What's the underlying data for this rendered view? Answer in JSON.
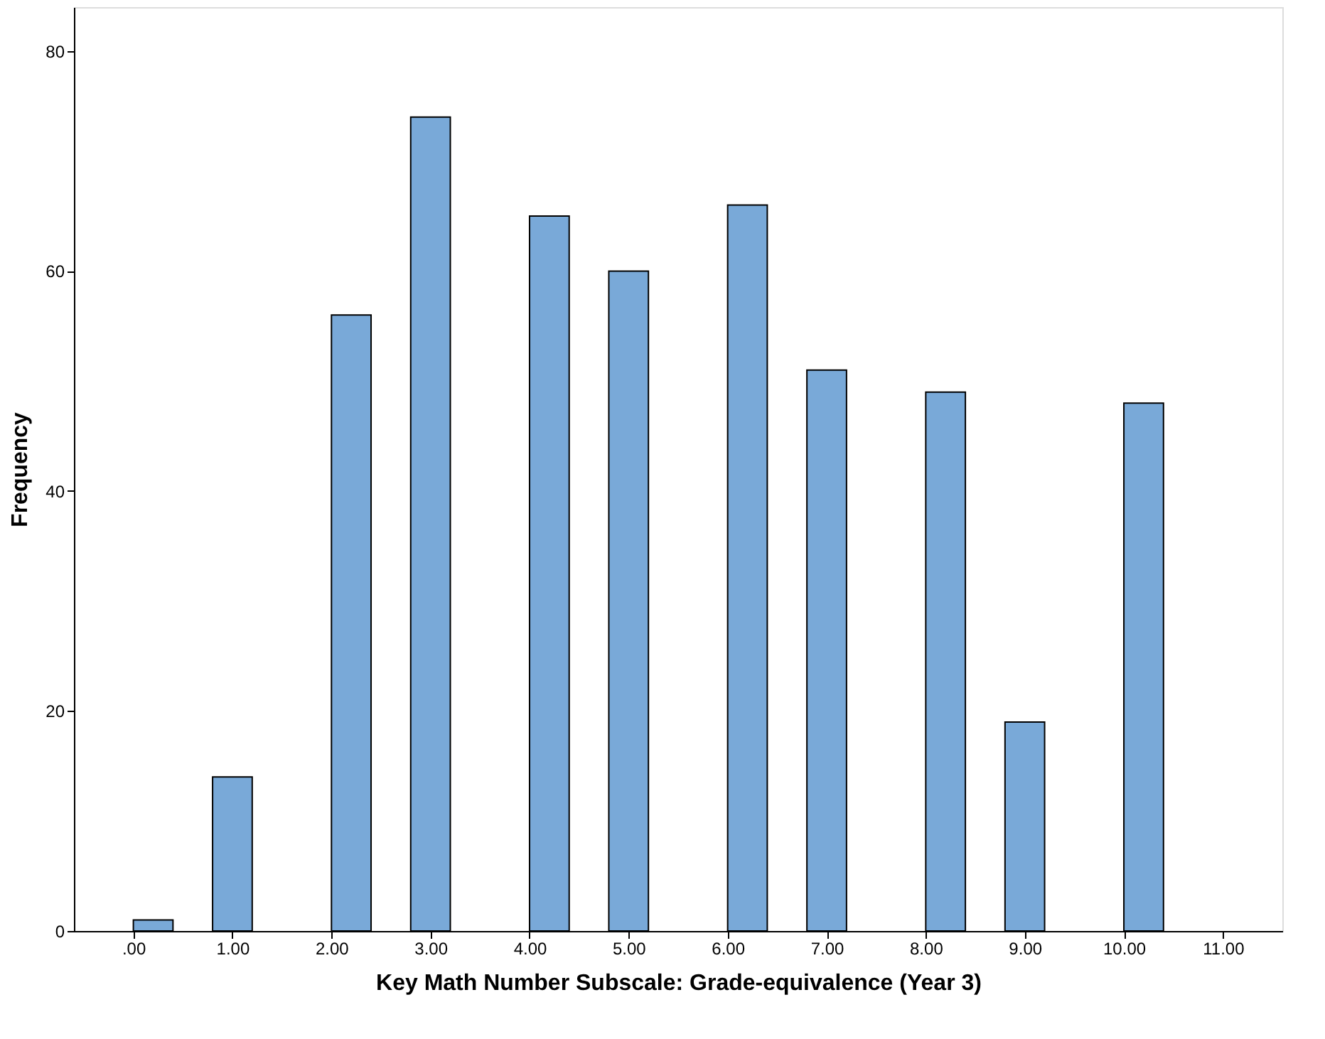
{
  "chart_data": {
    "type": "histogram",
    "xlabel": "Key Math Number Subscale:  Grade-equivalence (Year 3)",
    "ylabel": "Frequency",
    "bins": [
      0,
      0.4,
      0.8,
      1.2,
      1.6,
      2.0,
      2.4,
      2.8,
      3.2,
      3.6,
      4.0,
      4.4,
      4.8,
      5.2,
      5.6,
      6.0,
      6.4,
      6.8,
      7.2,
      7.6,
      8.0,
      8.4,
      8.8,
      9.2,
      9.6,
      10.0,
      10.4
    ],
    "values": [
      1,
      0,
      14,
      0,
      0,
      56,
      0,
      74,
      0,
      0,
      65,
      0,
      60,
      0,
      0,
      66,
      0,
      51,
      0,
      0,
      49,
      0,
      19,
      0,
      0,
      48
    ],
    "color": "#79a9d8",
    "xlim": [
      -0.6,
      11.6
    ],
    "xticks": [
      {
        "value": 0,
        "label": ".00"
      },
      {
        "value": 1,
        "label": "1.00"
      },
      {
        "value": 2,
        "label": "2.00"
      },
      {
        "value": 3,
        "label": "3.00"
      },
      {
        "value": 4,
        "label": "4.00"
      },
      {
        "value": 5,
        "label": "5.00"
      },
      {
        "value": 6,
        "label": "6.00"
      },
      {
        "value": 7,
        "label": "7.00"
      },
      {
        "value": 8,
        "label": "8.00"
      },
      {
        "value": 9,
        "label": "9.00"
      },
      {
        "value": 10,
        "label": "10.00"
      },
      {
        "value": 11,
        "label": "11.00"
      }
    ],
    "ylim": [
      0,
      84
    ],
    "yticks": [
      0,
      20,
      40,
      60,
      80
    ],
    "grid": false
  }
}
